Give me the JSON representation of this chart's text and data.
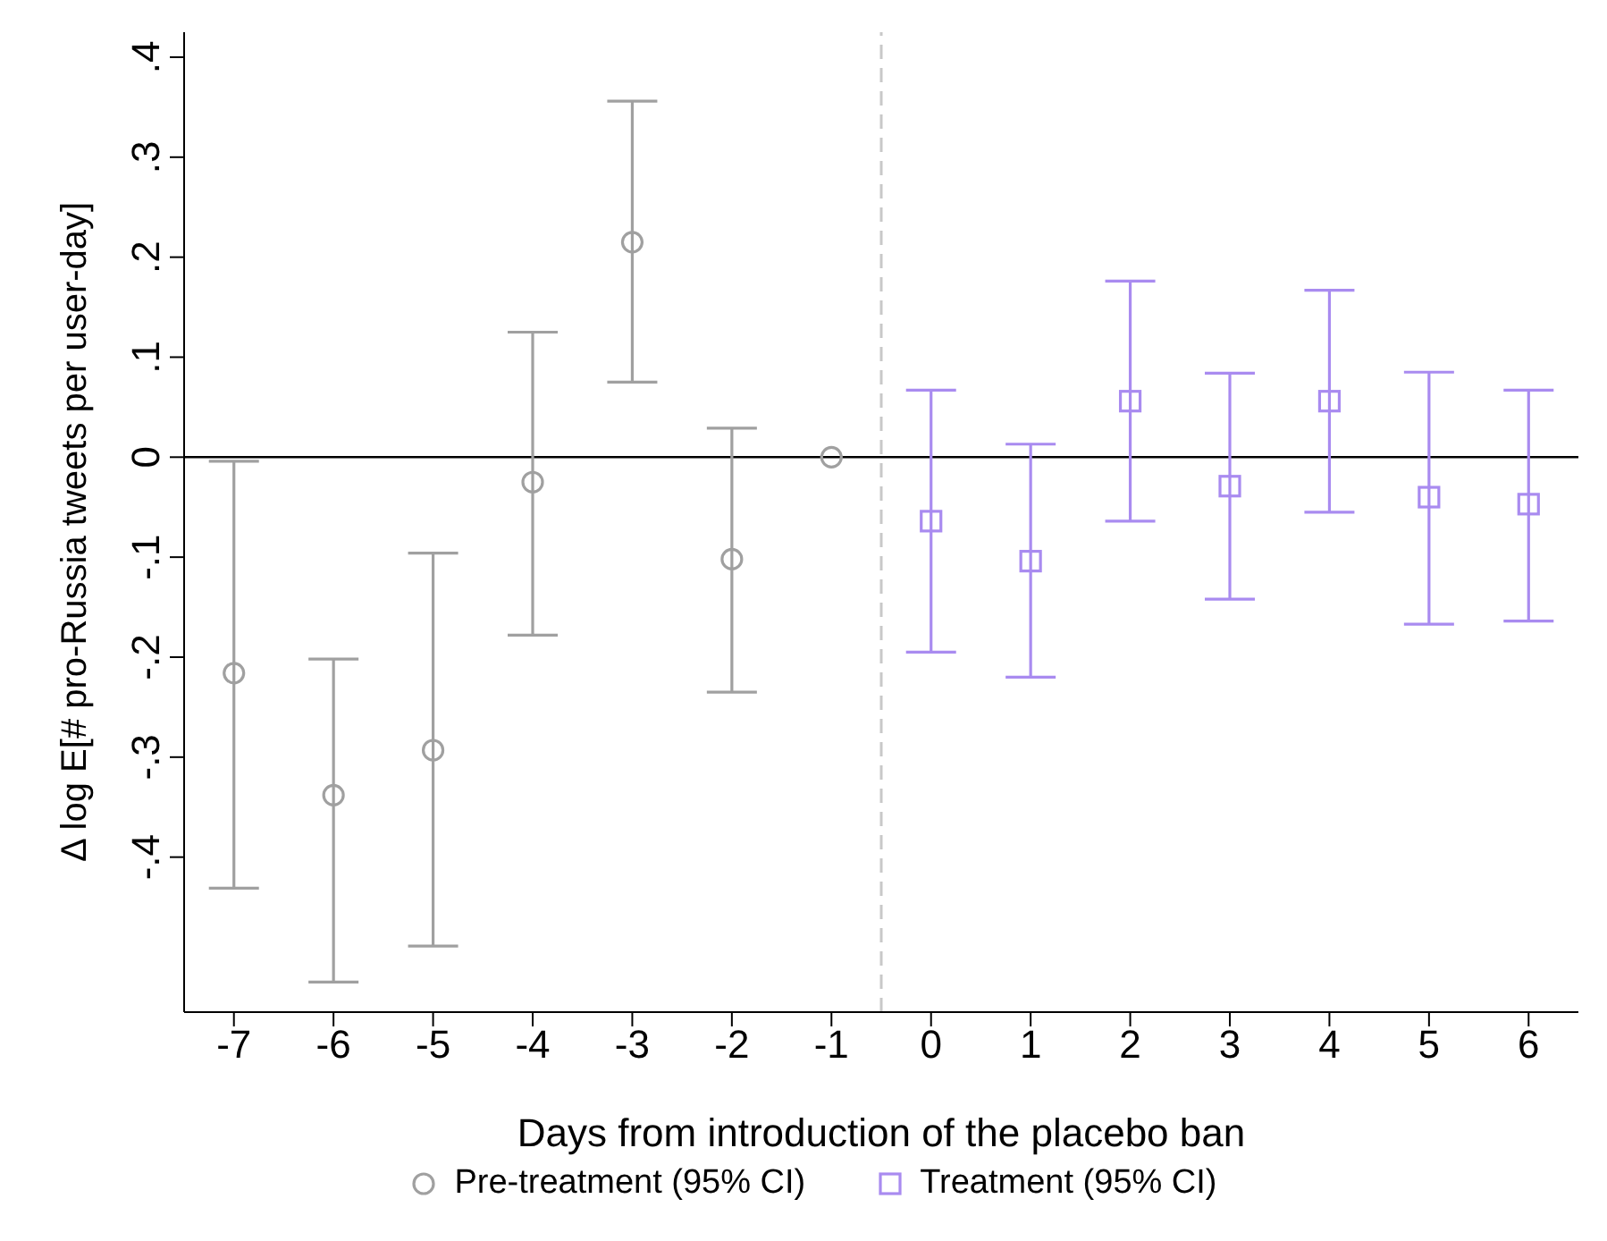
{
  "chart_data": {
    "type": "scatter",
    "xlabel": "Days from introduction of the placebo ban",
    "ylabel": "Δ log E[# pro-Russia tweets per user-day]",
    "xlim": [
      -7.5,
      6.5
    ],
    "xticks": [
      -7,
      -6,
      -5,
      -4,
      -3,
      -2,
      -1,
      0,
      1,
      2,
      3,
      4,
      5,
      6
    ],
    "ylim": [
      -0.555,
      0.425
    ],
    "yticks": [
      {
        "value": -0.4,
        "label": "-.4"
      },
      {
        "value": -0.3,
        "label": "-.3"
      },
      {
        "value": -0.2,
        "label": "-.2"
      },
      {
        "value": -0.1,
        "label": "-.1"
      },
      0,
      {
        "value": 0.1,
        "label": ".1"
      },
      {
        "value": 0.2,
        "label": ".2"
      },
      {
        "value": 0.3,
        "label": ".3"
      },
      {
        "value": 0.4,
        "label": ".4"
      }
    ],
    "grid": false,
    "legend": "bottom",
    "ref_lines": [
      {
        "axis": "y",
        "value": 0,
        "color": "#000000",
        "line_style": "solid"
      },
      {
        "axis": "x",
        "value": -0.5,
        "color": "#c8c8c8",
        "line_style": "dashed"
      }
    ],
    "series": [
      {
        "name": "Pre-treatment (95% CI)",
        "color": "#a0a0a0",
        "marker": "circle",
        "x": [
          -7,
          -6,
          -5,
          -4,
          -3,
          -2,
          -1
        ],
        "values": [
          -0.216,
          -0.338,
          -0.293,
          -0.025,
          0.215,
          -0.102,
          0
        ],
        "errors": [
          [
            -0.431,
            -0.004
          ],
          [
            -0.525,
            -0.202
          ],
          [
            -0.489,
            -0.096
          ],
          [
            -0.178,
            0.125
          ],
          [
            0.075,
            0.356
          ],
          [
            -0.235,
            0.029
          ],
          null
        ]
      },
      {
        "name": "Treatment (95% CI)",
        "color": "#a98bf0",
        "marker": "square",
        "x": [
          0,
          1,
          2,
          3,
          4,
          5,
          6
        ],
        "values": [
          -0.064,
          -0.104,
          0.056,
          -0.029,
          0.056,
          -0.04,
          -0.047
        ],
        "errors": [
          [
            -0.195,
            0.067
          ],
          [
            -0.22,
            0.013
          ],
          [
            -0.064,
            0.176
          ],
          [
            -0.142,
            0.084
          ],
          [
            -0.055,
            0.167
          ],
          [
            -0.167,
            0.085
          ],
          [
            -0.164,
            0.067
          ]
        ]
      }
    ]
  }
}
